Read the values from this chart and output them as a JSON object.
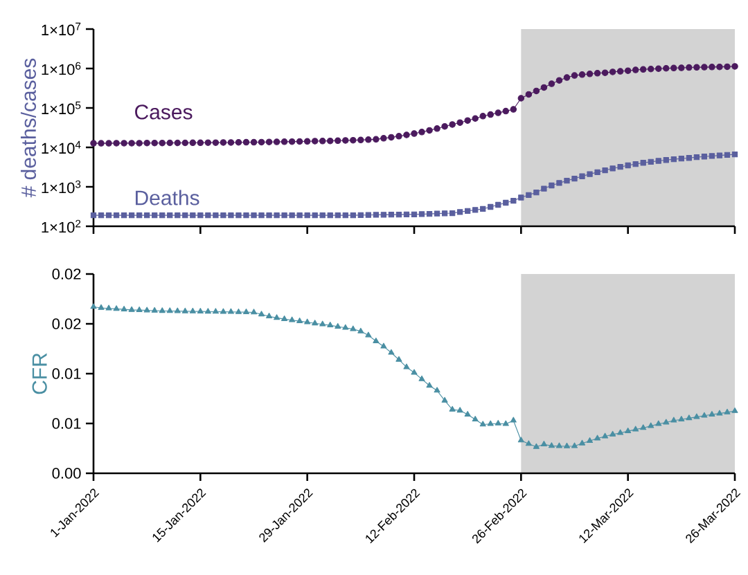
{
  "chart_data": [
    {
      "type": "line",
      "ylabel": "# deaths/cases",
      "log": true,
      "tick_labels": "y",
      "x": [
        "2022-01-01",
        "2022-01-02",
        "2022-01-03",
        "2022-01-04",
        "2022-01-05",
        "2022-01-06",
        "2022-01-07",
        "2022-01-08",
        "2022-01-09",
        "2022-01-10",
        "2022-01-11",
        "2022-01-12",
        "2022-01-13",
        "2022-01-14",
        "2022-01-15",
        "2022-01-16",
        "2022-01-17",
        "2022-01-18",
        "2022-01-19",
        "2022-01-20",
        "2022-01-21",
        "2022-01-22",
        "2022-01-23",
        "2022-01-24",
        "2022-01-25",
        "2022-01-26",
        "2022-01-27",
        "2022-01-28",
        "2022-01-29",
        "2022-01-30",
        "2022-01-31",
        "2022-02-01",
        "2022-02-02",
        "2022-02-03",
        "2022-02-04",
        "2022-02-05",
        "2022-02-06",
        "2022-02-07",
        "2022-02-08",
        "2022-02-09",
        "2022-02-10",
        "2022-02-11",
        "2022-02-12",
        "2022-02-13",
        "2022-02-14",
        "2022-02-15",
        "2022-02-16",
        "2022-02-17",
        "2022-02-18",
        "2022-02-19",
        "2022-02-20",
        "2022-02-21",
        "2022-02-22",
        "2022-02-23",
        "2022-02-24",
        "2022-02-25",
        "2022-02-26",
        "2022-02-27",
        "2022-02-28",
        "2022-03-01",
        "2022-03-02",
        "2022-03-03",
        "2022-03-04",
        "2022-03-05",
        "2022-03-06",
        "2022-03-07",
        "2022-03-08",
        "2022-03-09",
        "2022-03-10",
        "2022-03-11",
        "2022-03-12",
        "2022-03-13",
        "2022-03-14",
        "2022-03-15",
        "2022-03-16",
        "2022-03-17",
        "2022-03-18",
        "2022-03-19",
        "2022-03-20",
        "2022-03-21",
        "2022-03-22",
        "2022-03-23",
        "2022-03-24",
        "2022-03-25",
        "2022-03-26"
      ],
      "xlim": [
        "2022-01-01",
        "2022-03-26"
      ],
      "xticks": [
        {
          "value": "2022-01-01",
          "label": null
        },
        {
          "value": "2022-01-15",
          "label": null
        },
        {
          "value": "2022-01-29",
          "label": null
        },
        {
          "value": "2022-02-12",
          "label": null
        },
        {
          "value": "2022-02-26",
          "label": null
        },
        {
          "value": "2022-03-12",
          "label": null
        },
        {
          "value": "2022-03-26",
          "label": null
        }
      ],
      "ylim": [
        100,
        10000000
      ],
      "yticks": [
        {
          "value": 100,
          "label": "1×10$^{2}$"
        },
        {
          "value": 1000,
          "label": "1×10$^{3}$"
        },
        {
          "value": 10000,
          "label": "1×10$^{4}$"
        },
        {
          "value": 100000,
          "label": "1×10$^{5}$"
        },
        {
          "value": 1000000,
          "label": "1×10$^{6}$"
        },
        {
          "value": 10000000,
          "label": "1×10$^{7}$"
        }
      ],
      "bands": [
        {
          "axis": "x",
          "from": "2022-02-26",
          "to": "2022-03-26",
          "color": "#d3d3d3"
        }
      ],
      "series": [
        {
          "name": "Cases",
          "color": "#4b1a5e",
          "marker": "circle",
          "values": [
            12700,
            12700,
            12700,
            12800,
            12800,
            12800,
            12800,
            12900,
            12900,
            12900,
            13000,
            13000,
            13000,
            13100,
            13100,
            13200,
            13200,
            13300,
            13300,
            13400,
            13500,
            13500,
            13600,
            13700,
            13800,
            13900,
            14000,
            14100,
            14200,
            14400,
            14500,
            14600,
            14800,
            15000,
            15200,
            15400,
            15700,
            16000,
            17000,
            18000,
            19200,
            20700,
            22400,
            24500,
            27000,
            30000,
            34000,
            38000,
            42500,
            48000,
            54000,
            62000,
            68000,
            75000,
            83000,
            92000,
            176000,
            220000,
            270000,
            330000,
            410000,
            500000,
            590000,
            665000,
            700000,
            730000,
            760000,
            780000,
            820000,
            850000,
            880000,
            920000,
            950000,
            970000,
            990000,
            1010000,
            1030000,
            1040000,
            1060000,
            1070000,
            1080000,
            1090000,
            1100000,
            1110000,
            1130000
          ]
        },
        {
          "name": "Deaths",
          "color": "#5a5f9e",
          "marker": "square",
          "values": [
            190,
            190,
            190,
            190,
            190,
            190,
            190,
            190,
            190,
            190,
            190,
            190,
            190,
            190,
            190,
            190,
            190,
            190,
            190,
            190,
            190,
            190,
            190,
            190,
            190,
            190,
            190,
            190,
            190,
            190,
            190,
            190,
            190,
            190,
            190,
            192,
            193,
            195,
            196,
            197,
            198,
            200,
            200,
            203,
            206,
            210,
            213,
            215,
            230,
            245,
            260,
            275,
            310,
            350,
            395,
            445,
            535,
            620,
            720,
            900,
            1085,
            1250,
            1430,
            1620,
            1850,
            2100,
            2350,
            2630,
            2920,
            3200,
            3500,
            3780,
            4070,
            4300,
            4550,
            4780,
            5000,
            5200,
            5400,
            5650,
            5850,
            6050,
            6250,
            6450,
            6650
          ]
        }
      ]
    },
    {
      "type": "line",
      "ylabel": "CFR",
      "x": [
        "2022-01-01",
        "2022-01-02",
        "2022-01-03",
        "2022-01-04",
        "2022-01-05",
        "2022-01-06",
        "2022-01-07",
        "2022-01-08",
        "2022-01-09",
        "2022-01-10",
        "2022-01-11",
        "2022-01-12",
        "2022-01-13",
        "2022-01-14",
        "2022-01-15",
        "2022-01-16",
        "2022-01-17",
        "2022-01-18",
        "2022-01-19",
        "2022-01-20",
        "2022-01-21",
        "2022-01-22",
        "2022-01-23",
        "2022-01-24",
        "2022-01-25",
        "2022-01-26",
        "2022-01-27",
        "2022-01-28",
        "2022-01-29",
        "2022-01-30",
        "2022-01-31",
        "2022-02-01",
        "2022-02-02",
        "2022-02-03",
        "2022-02-04",
        "2022-02-05",
        "2022-02-06",
        "2022-02-07",
        "2022-02-08",
        "2022-02-09",
        "2022-02-10",
        "2022-02-11",
        "2022-02-12",
        "2022-02-13",
        "2022-02-14",
        "2022-02-15",
        "2022-02-16",
        "2022-02-17",
        "2022-02-18",
        "2022-02-19",
        "2022-02-20",
        "2022-02-21",
        "2022-02-22",
        "2022-02-23",
        "2022-02-24",
        "2022-02-25",
        "2022-02-26",
        "2022-02-27",
        "2022-02-28",
        "2022-03-01",
        "2022-03-02",
        "2022-03-03",
        "2022-03-04",
        "2022-03-05",
        "2022-03-06",
        "2022-03-07",
        "2022-03-08",
        "2022-03-09",
        "2022-03-10",
        "2022-03-11",
        "2022-03-12",
        "2022-03-13",
        "2022-03-14",
        "2022-03-15",
        "2022-03-16",
        "2022-03-17",
        "2022-03-18",
        "2022-03-19",
        "2022-03-20",
        "2022-03-21",
        "2022-03-22",
        "2022-03-23",
        "2022-03-24",
        "2022-03-25",
        "2022-03-26"
      ],
      "xlim": [
        "2022-01-01",
        "2022-03-26"
      ],
      "xticks": [
        {
          "value": "2022-01-01",
          "label": "1-Jan-2022"
        },
        {
          "value": "2022-01-15",
          "label": "15-Jan-2022"
        },
        {
          "value": "2022-01-29",
          "label": "29-Jan-2022"
        },
        {
          "value": "2022-02-12",
          "label": "12-Feb-2022"
        },
        {
          "value": "2022-02-26",
          "label": "26-Feb-2022"
        },
        {
          "value": "2022-03-12",
          "label": "12-Mar-2022"
        },
        {
          "value": "2022-03-26",
          "label": "26-Mar-2022"
        }
      ],
      "ylim": [
        0,
        0.02
      ],
      "yticks": [
        {
          "value": 0,
          "label": "0.00"
        },
        {
          "value": 0.005,
          "label": "0.01"
        },
        {
          "value": 0.01,
          "label": "0.01"
        },
        {
          "value": 0.015,
          "label": "0.02"
        },
        {
          "value": 0.02,
          "label": "0.02"
        }
      ],
      "bands": [
        {
          "axis": "x",
          "from": "2022-02-26",
          "to": "2022-03-26",
          "color": "#d3d3d3"
        }
      ],
      "series": [
        {
          "color": "#4a8fa3",
          "marker": "triangle",
          "values": [
            0.0167,
            0.0166,
            0.01655,
            0.0165,
            0.01645,
            0.0164,
            0.01638,
            0.01635,
            0.01632,
            0.0163,
            0.01629,
            0.01628,
            0.01626,
            0.01625,
            0.01624,
            0.01623,
            0.01622,
            0.01621,
            0.0162,
            0.01618,
            0.01617,
            0.01615,
            0.01595,
            0.01575,
            0.0156,
            0.01548,
            0.01537,
            0.01527,
            0.01516,
            0.01505,
            0.01495,
            0.01485,
            0.01472,
            0.0146,
            0.01447,
            0.01425,
            0.01385,
            0.01326,
            0.01273,
            0.0121,
            0.0114,
            0.01065,
            0.0101,
            0.00945,
            0.0088,
            0.0083,
            0.0073,
            0.0064,
            0.0063,
            0.0059,
            0.0054,
            0.0049,
            0.00495,
            0.005,
            0.00495,
            0.0053,
            0.0033,
            0.00295,
            0.00265,
            0.0029,
            0.00275,
            0.00273,
            0.00271,
            0.00273,
            0.003,
            0.00325,
            0.0035,
            0.0037,
            0.0039,
            0.00405,
            0.00423,
            0.0044,
            0.00455,
            0.00475,
            0.00495,
            0.0051,
            0.0053,
            0.0054,
            0.00553,
            0.00565,
            0.00578,
            0.0059,
            0.006,
            0.00612,
            0.00625
          ]
        }
      ]
    }
  ]
}
